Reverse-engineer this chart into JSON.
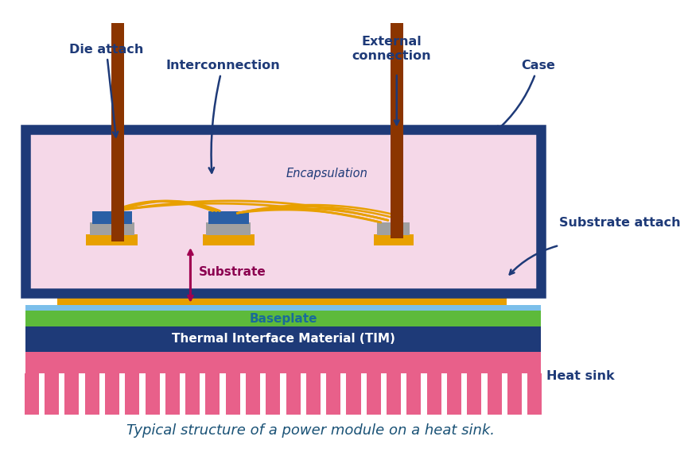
{
  "title": "Typical structure of a power module on a heat sink.",
  "title_color": "#1a5276",
  "title_fontsize": 13,
  "bg_color": "#ffffff",
  "labels": {
    "die_attach": "Die attach",
    "interconnection": "Interconnection",
    "external_connection": "External\nconnection",
    "case": "Case",
    "encapsulation": "Encapsulation",
    "substrate_attach": "Substrate attach",
    "substrate": "Substrate",
    "baseplate": "Baseplate",
    "tim": "Thermal Interface Material (TIM)",
    "heat_sink": "Heat sink"
  },
  "colors": {
    "case_border": "#1e3a78",
    "case_fill": "#f5d8e8",
    "substrate_copper": "#e8a000",
    "substrate_ceramic": "#f0b8cc",
    "baseplate_green": "#5dba3b",
    "baseplate_blue": "#7bbfea",
    "tim": "#1e3a78",
    "heat_sink": "#e8608a",
    "die_blue": "#2a5fa5",
    "die_gray": "#a0a0a0",
    "pin_brown": "#8b3500",
    "wire_yellow": "#e8a000",
    "label_color": "#1e3a78",
    "substrate_label": "#8b0050",
    "baseplate_label": "#1a6b99",
    "tim_label": "#ffffff",
    "double_arrow": "#a00050"
  }
}
